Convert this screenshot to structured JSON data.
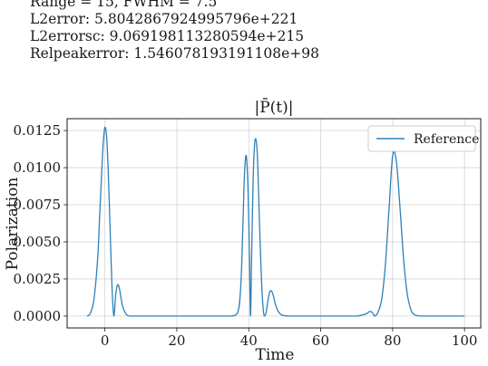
{
  "header": {
    "line1": "Range = 15, FWHM = 7.5",
    "line2": "L2error: 5.8042867924995796e+221",
    "line3": "L2errorsc: 9.069198113280594e+215",
    "line4": "Relpeakerror: 1.546078193191108e+98"
  },
  "chart_data": {
    "type": "line",
    "title": "|P̄(t)|",
    "xlabel": "Time",
    "ylabel": "Polarization",
    "xlim": [
      -10.5,
      104.5
    ],
    "ylim": [
      -0.0008,
      0.0133
    ],
    "xticks": [
      0,
      20,
      40,
      60,
      80,
      100
    ],
    "xtick_labels": [
      "0",
      "20",
      "40",
      "60",
      "80",
      "100"
    ],
    "yticks": [
      0.0,
      0.0025,
      0.005,
      0.0075,
      0.01,
      0.0125
    ],
    "ytick_labels": [
      "0.0000",
      "0.0025",
      "0.0050",
      "0.0075",
      "0.0100",
      "0.0125"
    ],
    "grid": true,
    "legend_position": "top-right",
    "series": [
      {
        "name": "Reference",
        "color": "#2e80b8",
        "x": [
          -5,
          -4,
          -3,
          -2,
          -1.5,
          -1,
          -0.5,
          0,
          0.5,
          1,
          1.5,
          2,
          2.5,
          3,
          3.5,
          4,
          4.5,
          5,
          6,
          7,
          8,
          10,
          20,
          30,
          35,
          37,
          37.8,
          38.3,
          38.8,
          39.3,
          39.8,
          40.2,
          40.5,
          40.8,
          41.2,
          41.6,
          42,
          42.4,
          42.8,
          43.3,
          43.8,
          44.3,
          44.8,
          45.3,
          45.8,
          46.3,
          46.8,
          47.3,
          48,
          49,
          51,
          55,
          65,
          70,
          72,
          73,
          73.5,
          74,
          74.5,
          75,
          76,
          77,
          78,
          79,
          80,
          81,
          82,
          83,
          84,
          85,
          86,
          88,
          90,
          100
        ],
        "values": [
          0.0,
          0.0002,
          0.0012,
          0.0039,
          0.0065,
          0.0091,
          0.0115,
          0.0127,
          0.012,
          0.0093,
          0.0055,
          0.0018,
          0.0,
          0.0014,
          0.0021,
          0.0019,
          0.0012,
          0.0006,
          0.0001,
          0.0,
          0.0,
          0.0,
          0.0,
          0.0,
          0.0,
          0.0003,
          0.0021,
          0.0055,
          0.0095,
          0.0108,
          0.0085,
          0.004,
          0.0,
          0.004,
          0.009,
          0.0115,
          0.0119,
          0.0108,
          0.0078,
          0.004,
          0.0012,
          0.0,
          0.0002,
          0.001,
          0.0016,
          0.0017,
          0.0014,
          0.0009,
          0.0004,
          0.0001,
          0.0,
          0.0,
          0.0,
          0.0,
          0.0001,
          0.0002,
          0.0003,
          0.0003,
          0.0002,
          0.0,
          0.0003,
          0.0012,
          0.0035,
          0.0072,
          0.0108,
          0.0105,
          0.0075,
          0.004,
          0.0016,
          0.0005,
          0.0001,
          0.0,
          0.0,
          0.0
        ]
      }
    ]
  }
}
